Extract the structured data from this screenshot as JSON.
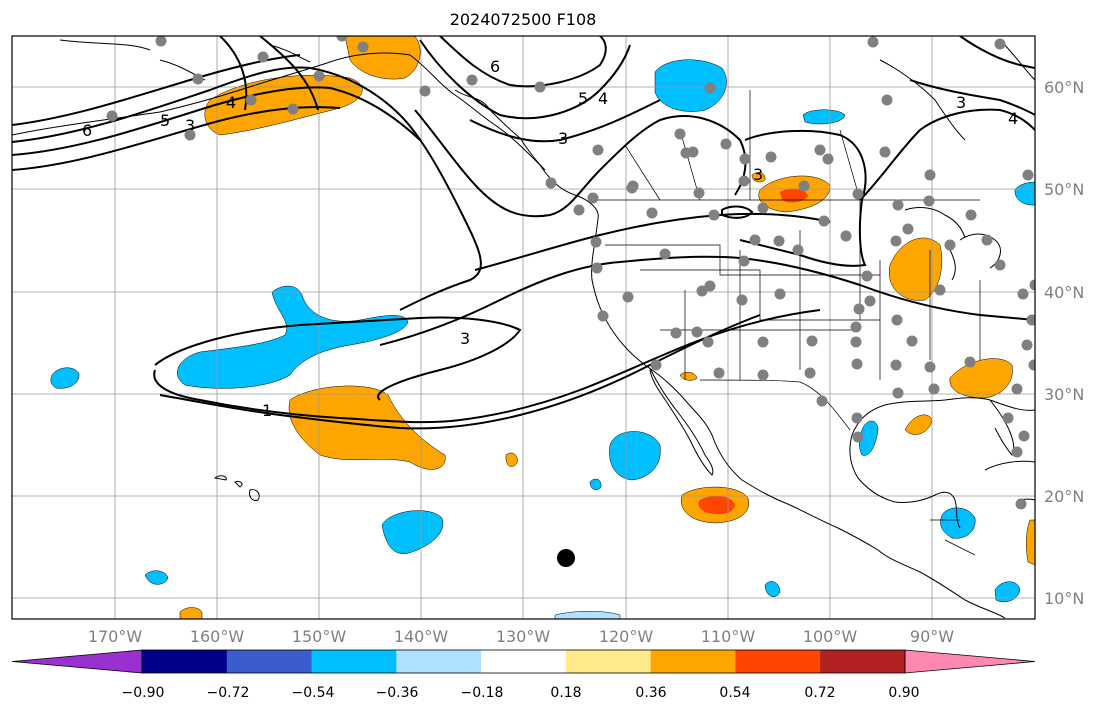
{
  "title": "2024072500 F108",
  "map": {
    "projection": "plate-carree",
    "lon_range": [
      -180,
      -80
    ],
    "lat_range": [
      8,
      65
    ],
    "gridlines": true,
    "lon_ticks": [
      "170°W",
      "160°W",
      "150°W",
      "140°W",
      "130°W",
      "120°W",
      "110°W",
      "100°W",
      "90°W"
    ],
    "lat_ticks": [
      "10°N",
      "20°N",
      "30°N",
      "40°N",
      "50°N",
      "60°N"
    ],
    "station_marker_color": "#808080",
    "highlight_marker_color": "#000000"
  },
  "contours": {
    "color": "#000000",
    "labels": [
      "6",
      "5",
      "3",
      "4",
      "6",
      "5",
      "4",
      "3",
      "3",
      "3",
      "4",
      "3",
      "1"
    ]
  },
  "colorbar": {
    "ticks": [
      "−0.90",
      "−0.72",
      "−0.54",
      "−0.36",
      "−0.18",
      "0.18",
      "0.36",
      "0.54",
      "0.72",
      "0.90"
    ],
    "colors": [
      "#9b30d0",
      "#00008b",
      "#3a5ccc",
      "#00bfff",
      "#b0e2ff",
      "#ffffff",
      "#ffe98a",
      "#ffa500",
      "#ff4500",
      "#b22222",
      "#ff88b0"
    ]
  }
}
